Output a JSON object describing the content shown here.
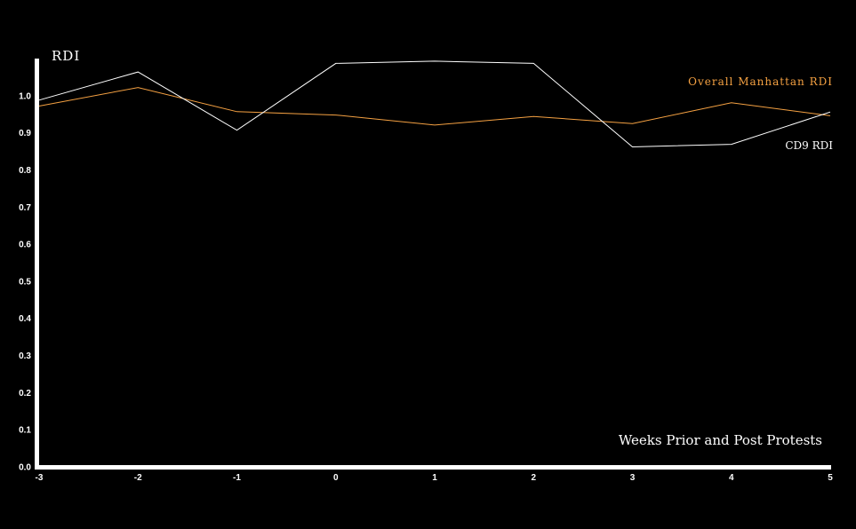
{
  "chart_data": {
    "type": "line",
    "ylabel": "RDI",
    "xlabel": "Weeks Prior and Post Protests",
    "x": [
      -3,
      -2,
      -1,
      0,
      1,
      2,
      3,
      4,
      5
    ],
    "xticks": [
      "-3",
      "-2",
      "-1",
      "0",
      "1",
      "2",
      "3",
      "4",
      "5"
    ],
    "yticks": [
      "0.0",
      "0.1",
      "0.2",
      "0.3",
      "0.4",
      "0.5",
      "0.6",
      "0.7",
      "0.8",
      "0.9",
      "1.0"
    ],
    "xlim": [
      -3,
      5
    ],
    "ylim": [
      0,
      1.1
    ],
    "grid": false,
    "series": [
      {
        "name": "Overall Manhattan RDI",
        "color": "#f5a142",
        "values": [
          0.972,
          1.022,
          0.957,
          0.948,
          0.921,
          0.944,
          0.925,
          0.981,
          0.946
        ]
      },
      {
        "name": "CD9 RDI",
        "color": "#ffffff",
        "values": [
          0.988,
          1.064,
          0.907,
          1.087,
          1.093,
          1.087,
          0.862,
          0.869,
          0.956
        ]
      }
    ]
  }
}
